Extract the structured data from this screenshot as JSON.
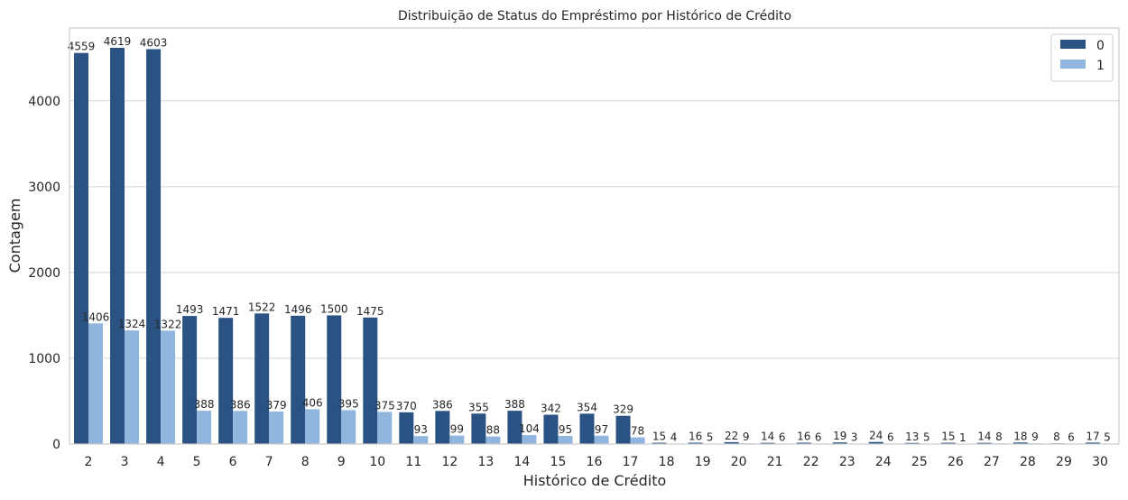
{
  "chart_data": {
    "type": "bar",
    "title": "Distribuição de Status do Empréstimo por Histórico de Crédito",
    "xlabel": "Histórico de Crédito",
    "ylabel": "Contagem",
    "ylim": [
      0,
      4850
    ],
    "yticks": [
      0,
      1000,
      2000,
      3000,
      4000
    ],
    "grid": true,
    "legend_position": "top-right",
    "categories": [
      "2",
      "3",
      "4",
      "5",
      "6",
      "7",
      "8",
      "9",
      "10",
      "11",
      "12",
      "13",
      "14",
      "15",
      "16",
      "17",
      "18",
      "19",
      "20",
      "21",
      "22",
      "23",
      "24",
      "25",
      "26",
      "27",
      "28",
      "29",
      "30"
    ],
    "series": [
      {
        "name": "0",
        "color": "#2a5384",
        "values": [
          4559,
          4619,
          4603,
          1493,
          1471,
          1522,
          1496,
          1500,
          1475,
          370,
          386,
          355,
          388,
          342,
          354,
          329,
          15,
          16,
          22,
          14,
          16,
          19,
          24,
          13,
          15,
          14,
          18,
          8,
          17
        ]
      },
      {
        "name": "1",
        "color": "#90b6de",
        "values": [
          1406,
          1324,
          1322,
          388,
          386,
          379,
          406,
          395,
          375,
          93,
          99,
          88,
          104,
          95,
          97,
          78,
          4,
          5,
          9,
          6,
          6,
          3,
          6,
          5,
          1,
          8,
          9,
          6,
          5
        ]
      }
    ]
  }
}
